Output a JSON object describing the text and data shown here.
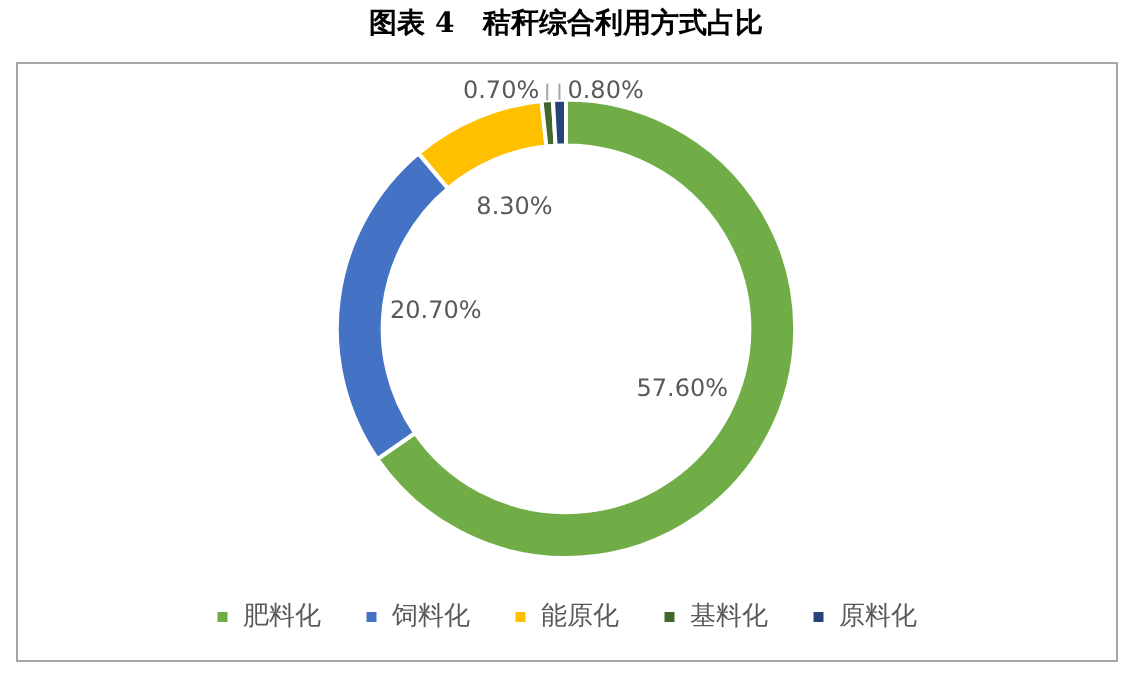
{
  "chart_data": {
    "type": "donut",
    "title": "图表 4　秸秆综合利用方式占比",
    "categories": [
      "肥料化",
      "饲料化",
      "能原化",
      "基料化",
      "原料化"
    ],
    "values": [
      57.6,
      20.7,
      8.3,
      0.7,
      0.8
    ],
    "value_labels": [
      "57.60%",
      "20.70%",
      "8.30%",
      "0.70%",
      "0.80%"
    ],
    "colors": [
      "#70ad47",
      "#4472c4",
      "#ffc000",
      "#43682b",
      "#264478"
    ],
    "legend": "bottom"
  }
}
